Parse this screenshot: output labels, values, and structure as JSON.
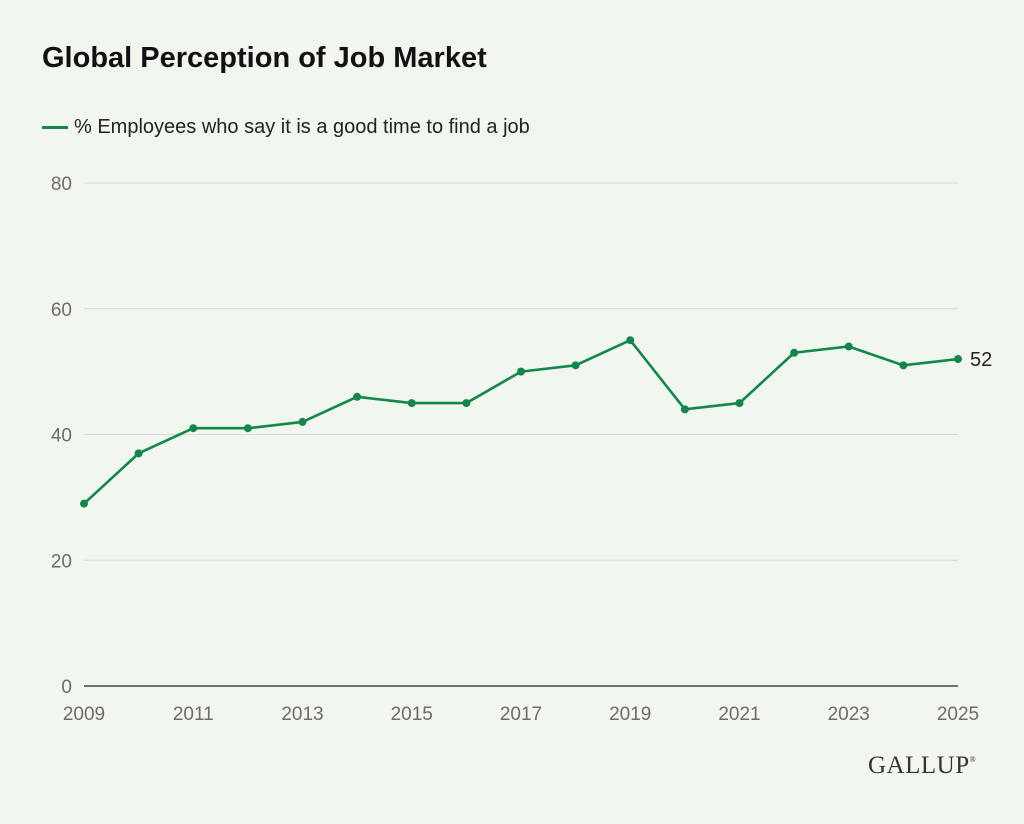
{
  "chart_data": {
    "type": "line",
    "title": "Global Perception of Job Market",
    "xlabel": "",
    "ylabel": "",
    "x": [
      2009,
      2010,
      2011,
      2012,
      2013,
      2014,
      2015,
      2016,
      2017,
      2018,
      2019,
      2020,
      2021,
      2022,
      2023,
      2024,
      2025
    ],
    "x_tick_labels": [
      "2009",
      "2011",
      "2013",
      "2015",
      "2017",
      "2019",
      "2021",
      "2023",
      "2025"
    ],
    "y_tick_labels": [
      "0",
      "20",
      "40",
      "60",
      "80"
    ],
    "ylim": [
      0,
      80
    ],
    "grid": true,
    "legend_position": "top-left",
    "series": [
      {
        "name": "% Employees who say it is a good time to find a job",
        "color": "#13874b",
        "values": [
          29,
          37,
          41,
          41,
          42,
          46,
          45,
          45,
          50,
          51,
          55,
          44,
          45,
          53,
          54,
          51,
          52
        ],
        "end_label": "52"
      }
    ]
  },
  "brand": {
    "name": "GALLUP",
    "mark": "®"
  }
}
